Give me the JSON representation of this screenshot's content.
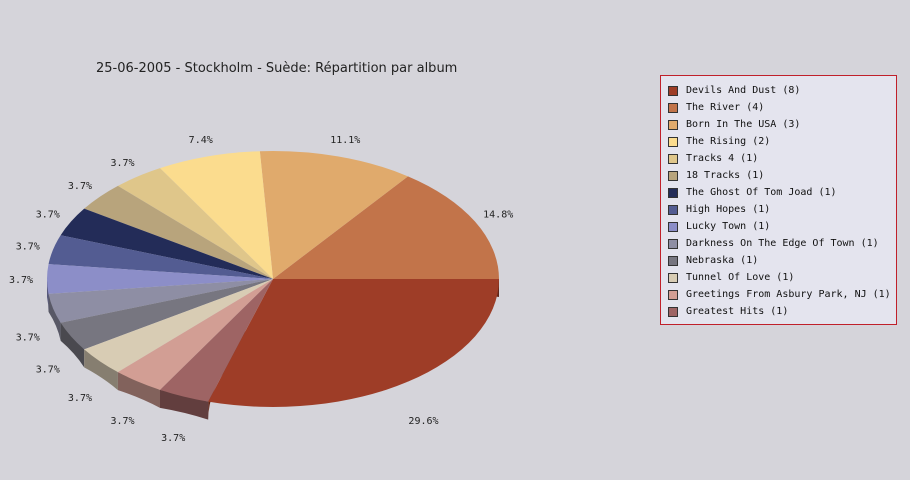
{
  "chart_data": {
    "type": "pie",
    "title": "25-06-2005 - Stockholm - Suède:  Répartition par album",
    "slices": [
      {
        "label": "Devils And Dust (8)",
        "value": 8,
        "percent": "29.6%",
        "color": "#9e3d27"
      },
      {
        "label": "The River (4)",
        "value": 4,
        "percent": "14.8%",
        "color": "#c2744a"
      },
      {
        "label": "Born In The USA (3)",
        "value": 3,
        "percent": "11.1%",
        "color": "#e0aa6c"
      },
      {
        "label": "The Rising (2)",
        "value": 2,
        "percent": "7.4%",
        "color": "#fbdc8e"
      },
      {
        "label": "Tracks 4 (1)",
        "value": 1,
        "percent": "3.7%",
        "color": "#dfc68a"
      },
      {
        "label": "18 Tracks (1)",
        "value": 1,
        "percent": "3.7%",
        "color": "#b8a47c"
      },
      {
        "label": "The Ghost Of Tom Joad (1)",
        "value": 1,
        "percent": "3.7%",
        "color": "#232c58"
      },
      {
        "label": "High Hopes (1)",
        "value": 1,
        "percent": "3.7%",
        "color": "#535c92"
      },
      {
        "label": "Lucky Town (1)",
        "value": 1,
        "percent": "3.7%",
        "color": "#8c8ec8"
      },
      {
        "label": "Darkness On The Edge Of Town (1)",
        "value": 1,
        "percent": "3.7%",
        "color": "#8e8ea4"
      },
      {
        "label": "Nebraska (1)",
        "value": 1,
        "percent": "3.7%",
        "color": "#777680"
      },
      {
        "label": "Tunnel Of Love (1)",
        "value": 1,
        "percent": "3.7%",
        "color": "#d8ccb4"
      },
      {
        "label": "Greetings From Asbury Park, NJ (1)",
        "value": 1,
        "percent": "3.7%",
        "color": "#d29e94"
      },
      {
        "label": "Greatest Hits (1)",
        "value": 1,
        "percent": "3.7%",
        "color": "#9e6464"
      }
    ],
    "legend_position": "right",
    "style": "3d"
  }
}
